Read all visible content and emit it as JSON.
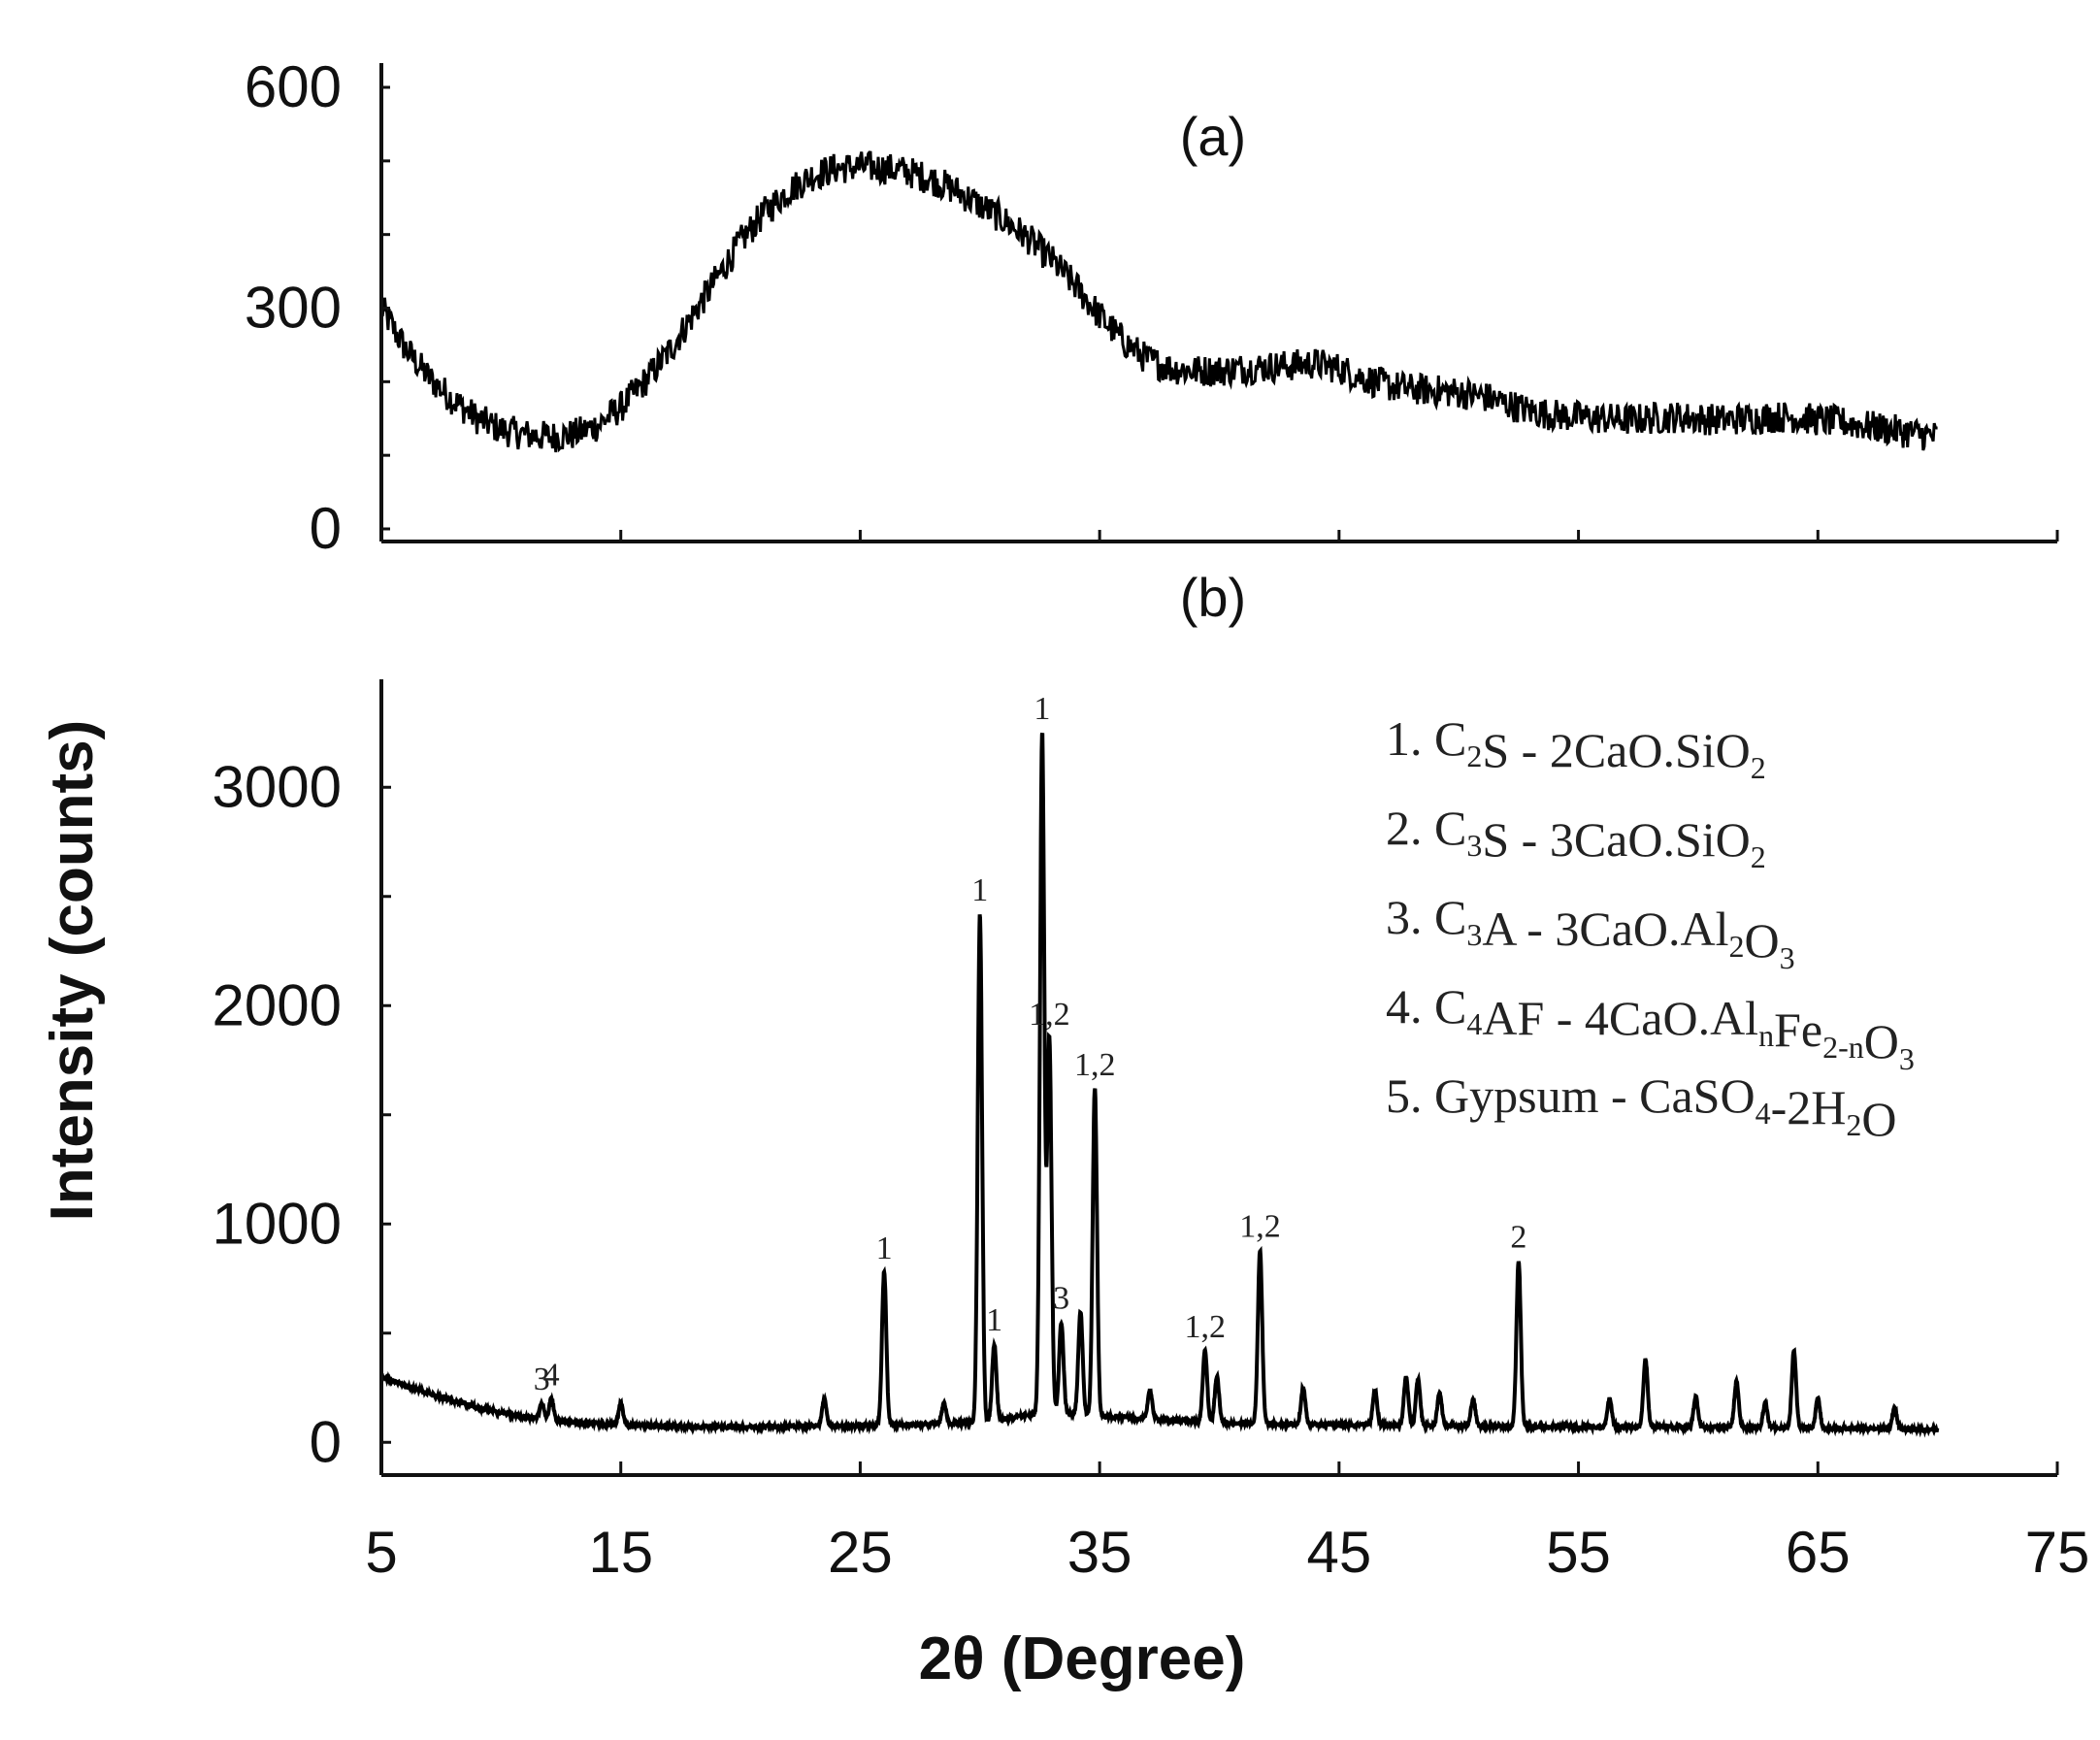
{
  "chart_data": [
    {
      "panel_label": "(a)",
      "type": "line",
      "xlim": [
        5,
        75
      ],
      "ylim": [
        0,
        600
      ],
      "yticks": [
        0,
        300,
        600
      ],
      "xticks": [
        5,
        15,
        25,
        35,
        45,
        55,
        65,
        75
      ],
      "x_tick_labels_shown": false,
      "grid": false,
      "series": [
        {
          "x": [
            5,
            6,
            7,
            8,
            9,
            10,
            11,
            12,
            13,
            14,
            15,
            16,
            17,
            18,
            19,
            20,
            21,
            22,
            23,
            24,
            25,
            26,
            27,
            28,
            29,
            30,
            31,
            32,
            33,
            34,
            35,
            36,
            37,
            38,
            39,
            40,
            41,
            42,
            43,
            44,
            45,
            46,
            47,
            48,
            49,
            50,
            51,
            52,
            53,
            54,
            55,
            56,
            57,
            58,
            59,
            60,
            61,
            62,
            63,
            64,
            65,
            66,
            67,
            68,
            69,
            70
          ],
          "y": [
            300,
            245,
            205,
            175,
            150,
            135,
            128,
            125,
            128,
            140,
            165,
            200,
            240,
            290,
            340,
            390,
            430,
            460,
            480,
            490,
            492,
            490,
            485,
            475,
            460,
            440,
            420,
            395,
            365,
            330,
            290,
            255,
            230,
            218,
            215,
            215,
            218,
            220,
            222,
            225,
            218,
            205,
            195,
            190,
            188,
            185,
            180,
            170,
            160,
            155,
            152,
            150,
            148,
            150,
            152,
            150,
            148,
            150,
            152,
            152,
            148,
            145,
            140,
            135,
            130,
            125
          ],
          "noise": 22
        }
      ]
    },
    {
      "panel_label": "(b)",
      "type": "line",
      "xlabel": "2θ (Degree)",
      "ylabel": "Intensity (counts)",
      "xlim": [
        5,
        75
      ],
      "ylim": [
        -150,
        3450
      ],
      "yticks": [
        0,
        1000,
        2000,
        3000
      ],
      "xticks": [
        5,
        15,
        25,
        35,
        45,
        55,
        65,
        75
      ],
      "grid": false,
      "baseline": [
        [
          5,
          300
        ],
        [
          6,
          260
        ],
        [
          7,
          225
        ],
        [
          8,
          190
        ],
        [
          9,
          160
        ],
        [
          10,
          135
        ],
        [
          11,
          115
        ],
        [
          12,
          100
        ],
        [
          14,
          85
        ],
        [
          16,
          75
        ],
        [
          20,
          70
        ],
        [
          25,
          75
        ],
        [
          30,
          90
        ],
        [
          33,
          140
        ],
        [
          35,
          120
        ],
        [
          40,
          90
        ],
        [
          45,
          80
        ],
        [
          50,
          75
        ],
        [
          55,
          70
        ],
        [
          60,
          70
        ],
        [
          65,
          65
        ],
        [
          70,
          60
        ]
      ],
      "peaks": [
        {
          "x": 11.7,
          "y": 180,
          "label": "3"
        },
        {
          "x": 12.1,
          "y": 200,
          "label": "4"
        },
        {
          "x": 15.0,
          "y": 180,
          "label": ""
        },
        {
          "x": 23.5,
          "y": 200,
          "label": ""
        },
        {
          "x": 26.0,
          "y": 780,
          "label": "1"
        },
        {
          "x": 28.5,
          "y": 180,
          "label": ""
        },
        {
          "x": 30.0,
          "y": 2420,
          "label": "1"
        },
        {
          "x": 30.6,
          "y": 450,
          "label": "1"
        },
        {
          "x": 32.6,
          "y": 3250,
          "label": "1"
        },
        {
          "x": 32.9,
          "y": 1850,
          "label": "1,2"
        },
        {
          "x": 33.4,
          "y": 550,
          "label": "3"
        },
        {
          "x": 34.2,
          "y": 600,
          "label": ""
        },
        {
          "x": 34.8,
          "y": 1620,
          "label": "1,2"
        },
        {
          "x": 37.1,
          "y": 240,
          "label": ""
        },
        {
          "x": 39.4,
          "y": 420,
          "label": "1,2"
        },
        {
          "x": 39.9,
          "y": 300,
          "label": ""
        },
        {
          "x": 41.7,
          "y": 880,
          "label": "1,2"
        },
        {
          "x": 43.5,
          "y": 250,
          "label": ""
        },
        {
          "x": 46.5,
          "y": 240,
          "label": ""
        },
        {
          "x": 47.8,
          "y": 300,
          "label": ""
        },
        {
          "x": 48.3,
          "y": 290,
          "label": ""
        },
        {
          "x": 49.2,
          "y": 230,
          "label": ""
        },
        {
          "x": 50.6,
          "y": 200,
          "label": ""
        },
        {
          "x": 52.5,
          "y": 830,
          "label": "2"
        },
        {
          "x": 56.3,
          "y": 200,
          "label": ""
        },
        {
          "x": 57.8,
          "y": 380,
          "label": ""
        },
        {
          "x": 59.9,
          "y": 210,
          "label": ""
        },
        {
          "x": 61.6,
          "y": 280,
          "label": ""
        },
        {
          "x": 62.8,
          "y": 180,
          "label": ""
        },
        {
          "x": 64.0,
          "y": 420,
          "label": ""
        },
        {
          "x": 65.0,
          "y": 200,
          "label": ""
        },
        {
          "x": 68.2,
          "y": 160,
          "label": ""
        }
      ],
      "legend_position": "top-right",
      "legend": [
        {
          "number": "1.",
          "name": "C",
          "sub1": "2",
          "rest1": "S - 2CaO.SiO",
          "sub2": "2",
          "rest2": "",
          "sub3": "",
          "rest3": "",
          "sub4": "",
          "rest4": ""
        },
        {
          "number": "2.",
          "name": "C",
          "sub1": "3",
          "rest1": "S - 3CaO.SiO",
          "sub2": "2",
          "rest2": "",
          "sub3": "",
          "rest3": "",
          "sub4": "",
          "rest4": ""
        },
        {
          "number": "3.",
          "name": "C",
          "sub1": "3",
          "rest1": "A - 3CaO.Al",
          "sub2": "2",
          "rest2": "O",
          "sub3": "3",
          "rest3": "",
          "sub4": "",
          "rest4": ""
        },
        {
          "number": "4.",
          "name": "C",
          "sub1": "4",
          "rest1": "AF - 4CaO.Al",
          "sub2": "n",
          "rest2": "Fe",
          "sub3": "2-n",
          "rest3": "O",
          "sub4": "3",
          "rest4": ""
        },
        {
          "number": "5.",
          "name": "Gypsum - CaSO",
          "sub1": "4",
          "rest1": "-2H",
          "sub2": "2",
          "rest2": "O",
          "sub3": "",
          "rest3": "",
          "sub4": "",
          "rest4": ""
        }
      ]
    }
  ]
}
